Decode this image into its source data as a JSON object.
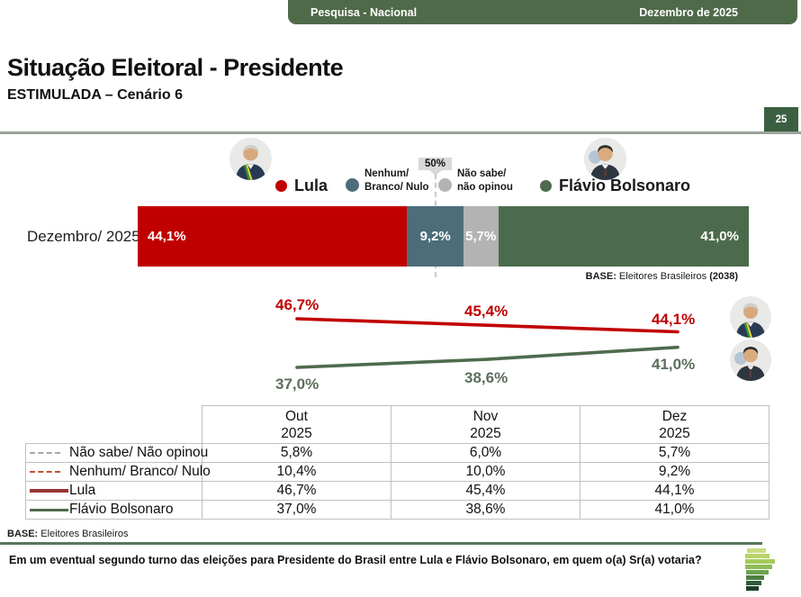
{
  "header": {
    "left_label": "Pesquisa - Nacional",
    "right_label": "Dezembro de 2025"
  },
  "title": "Situação Eleitoral - Presidente",
  "subtitle": "ESTIMULADA – Cenário 6",
  "page_number": "25",
  "legend": {
    "lula_label": "Lula",
    "nenhum_line1": "Nenhum/",
    "nenhum_line2": "Branco/ Nulo",
    "threshold_label": "50%",
    "nao_sabe_line1": "Não sabe/",
    "nao_sabe_line2": "não opinou",
    "flavio_label": "Flávio Bolsonaro"
  },
  "colors": {
    "lula_red": "#c00000",
    "nenhum_teal": "#4d6d7b",
    "nao_sabe_gray": "#b3b3b3",
    "flavio_green": "#4c6b4c",
    "header_green": "#4f6a49",
    "page_badge_green": "#3a5f41"
  },
  "bar_section": {
    "row_label": "Dezembro/ 2025",
    "base_label": "BASE:",
    "base_text": " Eleitores Brasileiros ",
    "base_n": "(2038)"
  },
  "chart_data": [
    {
      "type": "bar",
      "subtype": "horizontal-stacked",
      "category": "Dezembro/ 2025",
      "segments": [
        {
          "name": "Lula",
          "value": 44.1,
          "label": "44,1%",
          "color": "#c00000"
        },
        {
          "name": "Nenhum/ Branco/ Nulo",
          "value": 9.2,
          "label": "9,2%",
          "color": "#4d6d7b"
        },
        {
          "name": "Não sabe/ não opinou",
          "value": 5.7,
          "label": "5,7%",
          "color": "#b3b3b3"
        },
        {
          "name": "Flávio Bolsonaro",
          "value": 41.0,
          "label": "41,0%",
          "color": "#4c6b4c"
        }
      ],
      "annotations": [
        "50%"
      ],
      "base_note": "BASE: Eleitores Brasileiros (2038)"
    },
    {
      "type": "line",
      "x": [
        "Out 2025",
        "Nov 2025",
        "Dez 2025"
      ],
      "series": [
        {
          "name": "Lula",
          "color": "#c00000",
          "values": [
            46.7,
            45.4,
            44.1
          ],
          "labels": [
            "46,7%",
            "45,4%",
            "44,1%"
          ]
        },
        {
          "name": "Flávio Bolsonaro",
          "color": "#4e6b4e",
          "values": [
            37.0,
            38.6,
            41.0
          ],
          "labels": [
            "37,0%",
            "38,6%",
            "41,0%"
          ]
        }
      ],
      "legend_position": "right-avatars",
      "grid": false
    },
    {
      "type": "table",
      "columns": [
        {
          "line1": "Out",
          "line2": "2025"
        },
        {
          "line1": "Nov",
          "line2": "2025"
        },
        {
          "line1": "Dez",
          "line2": "2025"
        }
      ],
      "rows": [
        {
          "label": "Não sabe/ Não opinou",
          "marker": "dashed-gray",
          "values": [
            "5,8%",
            "6,0%",
            "5,7%"
          ]
        },
        {
          "label": "Nenhum/ Branco/ Nulo",
          "marker": "dashed-red",
          "values": [
            "10,4%",
            "10,0%",
            "9,2%"
          ]
        },
        {
          "label": "Lula",
          "marker": "solid-red",
          "values": [
            "46,7%",
            "45,4%",
            "44,1%"
          ]
        },
        {
          "label": "Flávio Bolsonaro",
          "marker": "solid-green",
          "values": [
            "37,0%",
            "38,6%",
            "41,0%"
          ]
        }
      ]
    }
  ],
  "footer": {
    "base_label": "BASE:",
    "base_text": " Eleitores Brasileiros",
    "question": "Em um eventual segundo turno das eleições para Presidente do Brasil entre Lula e Flávio Bolsonaro, em quem o(a) Sr(a) votaria?"
  }
}
